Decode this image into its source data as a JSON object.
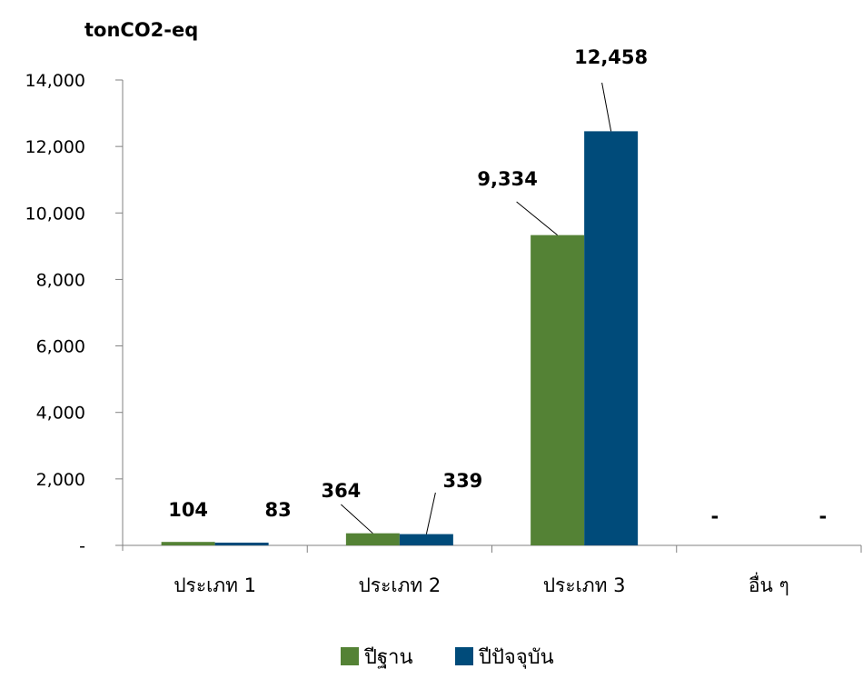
{
  "chart_data": {
    "type": "bar",
    "title": "",
    "ylabel": "tonCO2-eq",
    "xlabel": "",
    "ylim": [
      0,
      14000
    ],
    "yticks": [
      0,
      2000,
      4000,
      6000,
      8000,
      10000,
      12000,
      14000
    ],
    "ytick_labels": [
      "-",
      "2,000",
      "4,000",
      "6,000",
      "8,000",
      "10,000",
      "12,000",
      "14,000"
    ],
    "grid": false,
    "legend_position": "bottom",
    "categories": [
      "ประเภท 1",
      "ประเภท 2",
      "ประเภท 3",
      "อื่น ๆ"
    ],
    "series": [
      {
        "name": "ปีฐาน",
        "color": "#548235",
        "values": [
          104,
          364,
          9334,
          0
        ],
        "labels": [
          "104",
          "364",
          "9,334",
          "-"
        ]
      },
      {
        "name": "ปีปัจจุบัน",
        "color": "#004B7A",
        "values": [
          83,
          339,
          12458,
          0
        ],
        "labels": [
          "83",
          "339",
          "12,458",
          "-"
        ]
      }
    ]
  }
}
